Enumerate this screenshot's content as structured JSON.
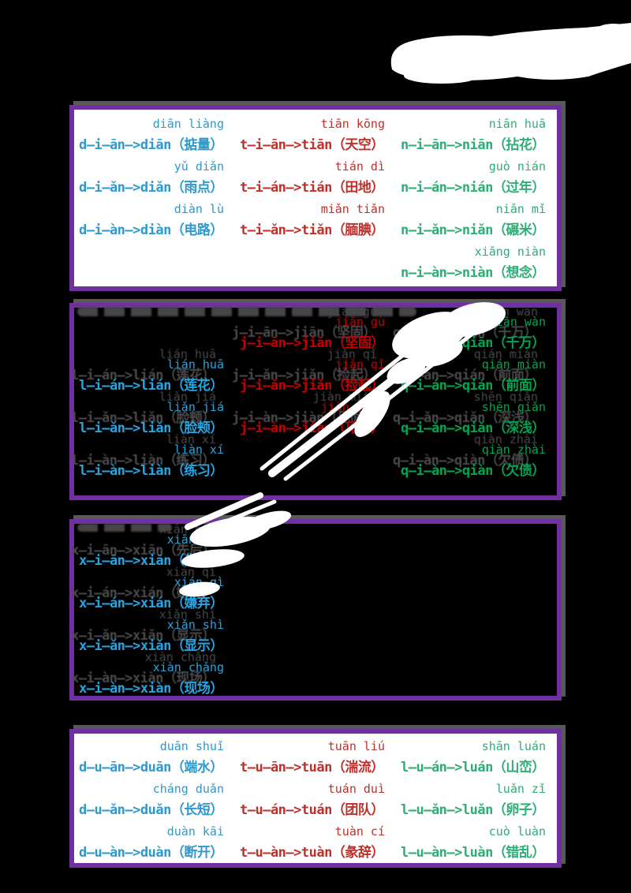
{
  "page": {
    "background": "#000000"
  },
  "theme": {
    "border_purple": "#7030A0",
    "shadow_gray": "#58595B",
    "smudge_gray": "#4A4A4C",
    "whiteout": "#FFFFFF",
    "blue": "#2E99CC",
    "red": "#C0302A",
    "green": "#2FAD76",
    "bright_blue": "#25A5E2",
    "bright_red": "#C40000",
    "bright_green": "#00A551"
  },
  "boxes": [
    {
      "id": "ian-d-t-n",
      "style": "light",
      "columns": [
        {
          "color": "#2E99CC",
          "rows": [
            {
              "slot": 0,
              "label": "diān liàng",
              "formula": "d—i—ān—>diān（掂量）"
            },
            {
              "slot": 1,
              "label": "yǔ diǎn",
              "formula": "d—i—ǎn—>diǎn（雨点）"
            },
            {
              "slot": 2,
              "label": "diàn lù",
              "formula": "d—i—àn—>diàn（电路）"
            }
          ]
        },
        {
          "color": "#C0302A",
          "rows": [
            {
              "slot": 0,
              "label": "tiān kōng",
              "formula": "t—i—ān—>tiān（天空）"
            },
            {
              "slot": 1,
              "label": "tián dì",
              "formula": "t—i—án—>tián（田地）"
            },
            {
              "slot": 2,
              "label": "miǎn tiǎn",
              "formula": "t—i—ǎn—>tiǎn（腼腆）"
            }
          ]
        },
        {
          "color": "#2FAD76",
          "rows": [
            {
              "slot": 0,
              "label": "niān huā",
              "formula": "n—i—ān—>niān（拈花）"
            },
            {
              "slot": 1,
              "label": "guò nián",
              "formula": "n—i—án—>nián（过年）"
            },
            {
              "slot": 2,
              "label": "niǎn mǐ",
              "formula": "n—i—ǎn—>niǎn（碾米）"
            },
            {
              "slot": 3,
              "label": "xiǎng niàn",
              "formula": "n—i—àn—>niàn（想念）"
            }
          ]
        }
      ]
    },
    {
      "id": "ian-l-j-q",
      "style": "dark",
      "columns": [
        {
          "color": "#25A5E2",
          "rows": [
            {
              "slot": 1,
              "label": "lián huā",
              "formula": "l—i—án—>lián（莲花）"
            },
            {
              "slot": 2,
              "label": "liǎn jiá",
              "formula": "l—i—ǎn—>liǎn（脸颊）"
            },
            {
              "slot": 3,
              "label": "liàn xí",
              "formula": "l—i—àn—>liàn（练习）"
            }
          ]
        },
        {
          "color": "#C40000",
          "rows": [
            {
              "slot": 0,
              "label": "jiān gù",
              "formula": "j—i—ān—>jiān（坚固）"
            },
            {
              "slot": 1,
              "label": "jiǎn qǐ",
              "formula": "j—i—ǎn—>jiǎn（捡起）"
            },
            {
              "slot": 2,
              "label": "jiàn miàn",
              "formula": "j—i—àn—>jiàn（见面）"
            }
          ]
        },
        {
          "color": "#00A551",
          "rows": [
            {
              "slot": 0,
              "label": "qiān wàn",
              "formula": "q—i—ān—>qiān（千万）"
            },
            {
              "slot": 1,
              "label": "qián miàn",
              "formula": "q—i—án—>qián（前面）"
            },
            {
              "slot": 2,
              "label": "shēn qiǎn",
              "formula": "q—i—ǎn—>qiǎn（深浅）"
            },
            {
              "slot": 3,
              "label": "qiàn zhài",
              "formula": "q—i—àn—>qiàn（欠债）"
            }
          ]
        }
      ]
    },
    {
      "id": "ian-x",
      "style": "dark",
      "columns": [
        {
          "color": "#25A5E2",
          "rows": [
            {
              "slot": 0,
              "label": "xiān hòu",
              "formula": "x—i—ān—>xiān（先后）"
            },
            {
              "slot": 1,
              "label": "xián qì",
              "formula": "x—i—án—>xián（嫌弃）"
            },
            {
              "slot": 2,
              "label": "xiǎn shì",
              "formula": "x—i—ǎn—>xiǎn（显示）"
            },
            {
              "slot": 3,
              "label": "xiàn chǎng",
              "formula": "x—i—àn—>xiàn（现场）"
            }
          ]
        },
        {
          "color": "#C40000",
          "rows": []
        },
        {
          "color": "#00A551",
          "rows": []
        }
      ]
    },
    {
      "id": "uan-d-t-l",
      "style": "light",
      "columns": [
        {
          "color": "#2E99CC",
          "rows": [
            {
              "slot": 0,
              "label": "duān shuǐ",
              "formula": "d—u—ān—>duān（端水）"
            },
            {
              "slot": 1,
              "label": "cháng duǎn",
              "formula": "d—u—ǎn—>duǎn（长短）"
            },
            {
              "slot": 2,
              "label": "duàn kāi",
              "formula": "d—u—àn—>duàn（断开）"
            }
          ]
        },
        {
          "color": "#C0302A",
          "rows": [
            {
              "slot": 0,
              "label": "tuān liú",
              "formula": "t—u—ān—>tuān（湍流）"
            },
            {
              "slot": 1,
              "label": "tuán duì",
              "formula": "t—u—án—>tuán（团队）"
            },
            {
              "slot": 2,
              "label": "tuàn cí",
              "formula": "t—u—àn—>tuàn（彖辞）"
            }
          ]
        },
        {
          "color": "#2FAD76",
          "rows": [
            {
              "slot": 0,
              "label": "shān luán",
              "formula": "l—u—án—>luán（山峦）"
            },
            {
              "slot": 1,
              "label": "luǎn zǐ",
              "formula": "l—u—ǎn—>luǎn（卵子）"
            },
            {
              "slot": 2,
              "label": "cuò luàn",
              "formula": "l—u—àn—>luàn（错乱）"
            }
          ]
        }
      ]
    }
  ]
}
